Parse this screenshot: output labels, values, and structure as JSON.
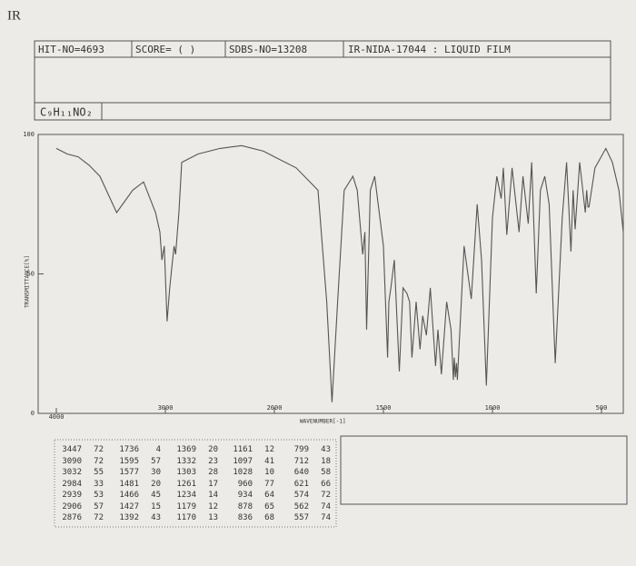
{
  "title": "IR",
  "header": {
    "hit_no": "HIT-NO=4693",
    "score": "SCORE=  (  )",
    "sdbs_no": "SDBS-NO=13208",
    "sample": "IR-NIDA-17044 : LIQUID FILM",
    "formula": "C₉H₁₁NO₂"
  },
  "chart_data": {
    "type": "line",
    "color": "#555555",
    "x_label": "WAVENUMBER[-1]",
    "y_label": "TRANSMITTANCE[%]",
    "xlim": [
      4000,
      400
    ],
    "x_scale_break": 2000,
    "xticks": [
      4000,
      3000,
      2000,
      1500,
      1000,
      500
    ],
    "ylim": [
      0,
      100
    ],
    "yticks": [
      0,
      50,
      100
    ],
    "x": [
      4000,
      3900,
      3800,
      3700,
      3600,
      3447,
      3300,
      3200,
      3090,
      3050,
      3032,
      3010,
      2984,
      2960,
      2939,
      2920,
      2906,
      2876,
      2850,
      2700,
      2500,
      2300,
      2100,
      2000,
      1900,
      1800,
      1760,
      1736,
      1710,
      1680,
      1640,
      1620,
      1595,
      1585,
      1577,
      1560,
      1540,
      1500,
      1481,
      1475,
      1466,
      1450,
      1427,
      1410,
      1392,
      1380,
      1369,
      1350,
      1332,
      1320,
      1303,
      1285,
      1261,
      1250,
      1234,
      1210,
      1190,
      1179,
      1175,
      1170,
      1165,
      1161,
      1130,
      1097,
      1070,
      1050,
      1028,
      1000,
      980,
      960,
      950,
      934,
      910,
      878,
      860,
      836,
      820,
      799,
      780,
      760,
      740,
      712,
      680,
      660,
      640,
      630,
      621,
      600,
      574,
      568,
      562,
      557,
      530,
      480,
      450,
      420,
      400
    ],
    "values": [
      95,
      93,
      92,
      89,
      85,
      72,
      80,
      83,
      72,
      65,
      55,
      60,
      33,
      45,
      53,
      60,
      57,
      72,
      90,
      93,
      95,
      96,
      94,
      92,
      88,
      80,
      40,
      4,
      40,
      80,
      85,
      80,
      57,
      65,
      30,
      80,
      85,
      60,
      20,
      40,
      45,
      55,
      15,
      45,
      43,
      40,
      20,
      40,
      23,
      35,
      28,
      45,
      17,
      30,
      14,
      40,
      30,
      12,
      20,
      13,
      18,
      12,
      60,
      41,
      75,
      55,
      10,
      70,
      85,
      77,
      88,
      64,
      88,
      65,
      85,
      68,
      90,
      43,
      80,
      85,
      75,
      18,
      70,
      90,
      58,
      80,
      66,
      90,
      72,
      80,
      74,
      74,
      88,
      95,
      90,
      80,
      65
    ]
  },
  "peak_table": [
    [
      [
        3447,
        72
      ],
      [
        3090,
        72
      ],
      [
        3032,
        55
      ],
      [
        2984,
        33
      ],
      [
        2939,
        53
      ],
      [
        2906,
        57
      ],
      [
        2876,
        72
      ]
    ],
    [
      [
        1736,
        4
      ],
      [
        1595,
        57
      ],
      [
        1577,
        30
      ],
      [
        1481,
        20
      ],
      [
        1466,
        45
      ],
      [
        1427,
        15
      ],
      [
        1392,
        43
      ]
    ],
    [
      [
        1369,
        20
      ],
      [
        1332,
        23
      ],
      [
        1303,
        28
      ],
      [
        1261,
        17
      ],
      [
        1234,
        14
      ],
      [
        1179,
        12
      ],
      [
        1170,
        13
      ]
    ],
    [
      [
        1161,
        12
      ],
      [
        1097,
        41
      ],
      [
        1028,
        10
      ],
      [
        960,
        77
      ],
      [
        934,
        64
      ],
      [
        878,
        65
      ],
      [
        836,
        68
      ]
    ],
    [
      [
        799,
        43
      ],
      [
        712,
        18
      ],
      [
        640,
        58
      ],
      [
        621,
        66
      ],
      [
        574,
        72
      ],
      [
        562,
        74
      ],
      [
        557,
        74
      ]
    ]
  ]
}
